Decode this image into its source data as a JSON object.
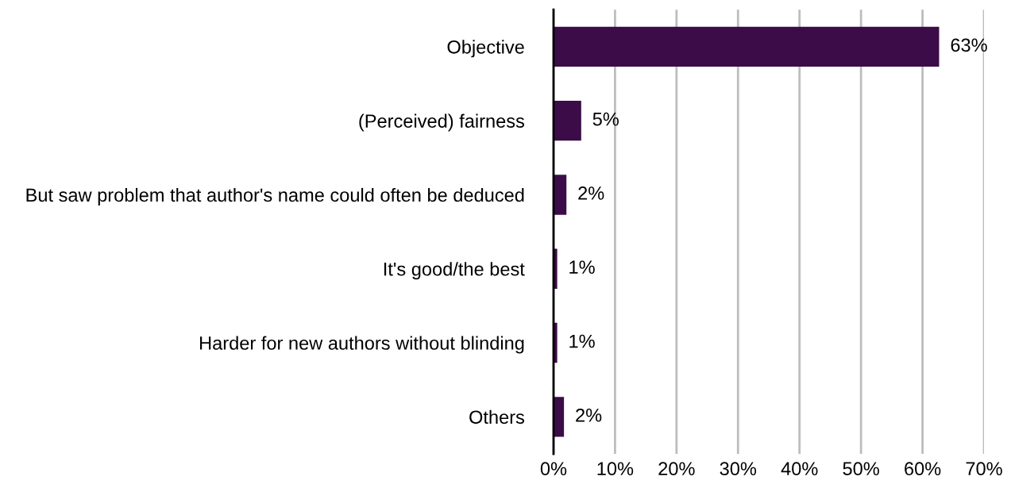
{
  "chart_data": {
    "type": "bar",
    "orientation": "horizontal",
    "categories": [
      "Objective",
      "(Perceived) fairness",
      "But saw problem that author's name could often be deduced",
      "It's good/the best",
      "Harder for new authors without blinding",
      "Others"
    ],
    "values": [
      62.7,
      4.5,
      2.1,
      0.6,
      0.6,
      1.7
    ],
    "value_labels": [
      "63%",
      "5%",
      "2%",
      "1%",
      "1%",
      "2%"
    ],
    "color": "#3c0c48",
    "xlim": [
      0,
      70
    ],
    "xticks": [
      {
        "value": 0,
        "label": "0%"
      },
      {
        "value": 10,
        "label": "10%"
      },
      {
        "value": 20,
        "label": "20%"
      },
      {
        "value": 30,
        "label": "30%"
      },
      {
        "value": 40,
        "label": "40%"
      },
      {
        "value": 50,
        "label": "50%"
      },
      {
        "value": 60,
        "label": "60%"
      },
      {
        "value": 70,
        "label": "70%"
      }
    ],
    "grid": "x"
  }
}
